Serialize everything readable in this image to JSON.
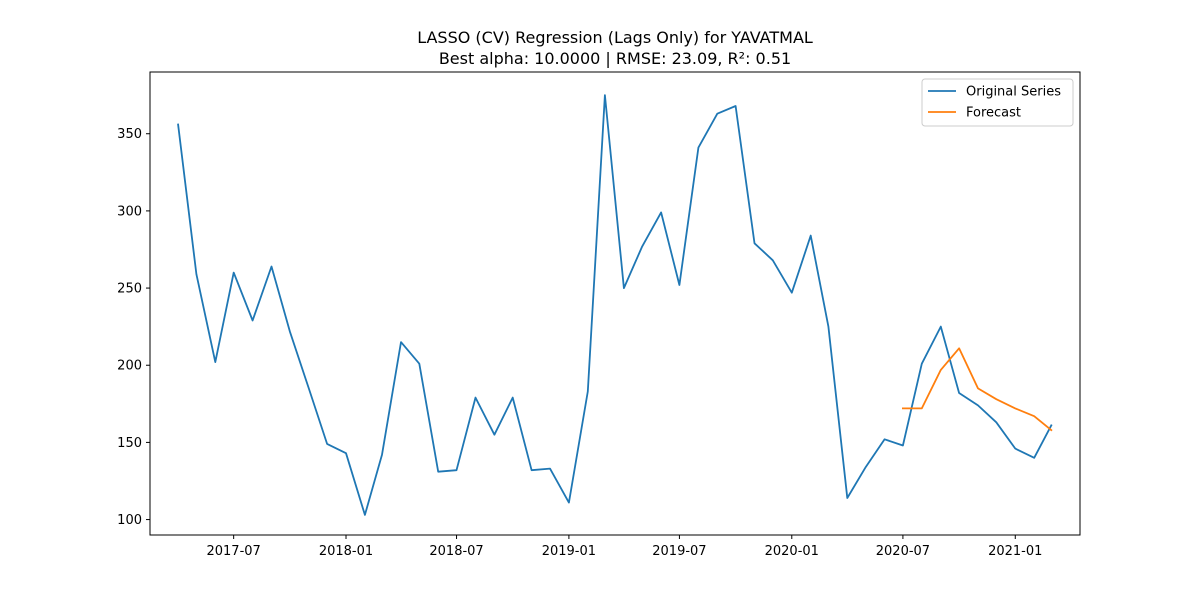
{
  "chart_data": {
    "type": "line",
    "title": "LASSO (CV) Regression (Lags Only) for YAVATMAL",
    "subtitle": "Best alpha: 10.0000 | RMSE: 23.09, R²: 0.51",
    "xlabel": "",
    "ylabel": "",
    "x_tick_labels": [
      "2017-07",
      "2018-01",
      "2018-07",
      "2019-01",
      "2019-07",
      "2020-01",
      "2020-07",
      "2021-01"
    ],
    "y_ticks": [
      100,
      150,
      200,
      250,
      300,
      350
    ],
    "ylim": [
      90,
      390
    ],
    "xlim": [
      "2017-02-14",
      "2021-04-17"
    ],
    "grid": false,
    "legend_position": "top-right",
    "series": [
      {
        "name": "Original Series",
        "color": "#1f77b4",
        "x": [
          "2017-04",
          "2017-05",
          "2017-06",
          "2017-07",
          "2017-08",
          "2017-09",
          "2017-10",
          "2017-11",
          "2017-12",
          "2018-01",
          "2018-02",
          "2018-03",
          "2018-04",
          "2018-05",
          "2018-06",
          "2018-07",
          "2018-08",
          "2018-09",
          "2018-10",
          "2018-11",
          "2018-12",
          "2019-01",
          "2019-02",
          "2019-03",
          "2019-04",
          "2019-05",
          "2019-06",
          "2019-07",
          "2019-08",
          "2019-09",
          "2019-10",
          "2019-11",
          "2019-12",
          "2020-01",
          "2020-02",
          "2020-03",
          "2020-04",
          "2020-05",
          "2020-06",
          "2020-07",
          "2020-08",
          "2020-09",
          "2020-10",
          "2020-11",
          "2020-12",
          "2021-01",
          "2021-02",
          "2021-03"
        ],
        "values": [
          356,
          259,
          202,
          260,
          229,
          264,
          222,
          185,
          149,
          143,
          103,
          142,
          215,
          201,
          131,
          132,
          179,
          155,
          179,
          132,
          133,
          111,
          183,
          375,
          250,
          277,
          299,
          252,
          341,
          363,
          368,
          279,
          268,
          247,
          284,
          225,
          114,
          134,
          152,
          148,
          201,
          225,
          182,
          174,
          163,
          146,
          140,
          161
        ]
      },
      {
        "name": "Forecast",
        "color": "#ff7f0e",
        "x": [
          "2020-07",
          "2020-08",
          "2020-09",
          "2020-10",
          "2020-11",
          "2020-12",
          "2021-01",
          "2021-02",
          "2021-03"
        ],
        "values": [
          172,
          172,
          197,
          211,
          185,
          178,
          172,
          167,
          158
        ]
      }
    ]
  }
}
